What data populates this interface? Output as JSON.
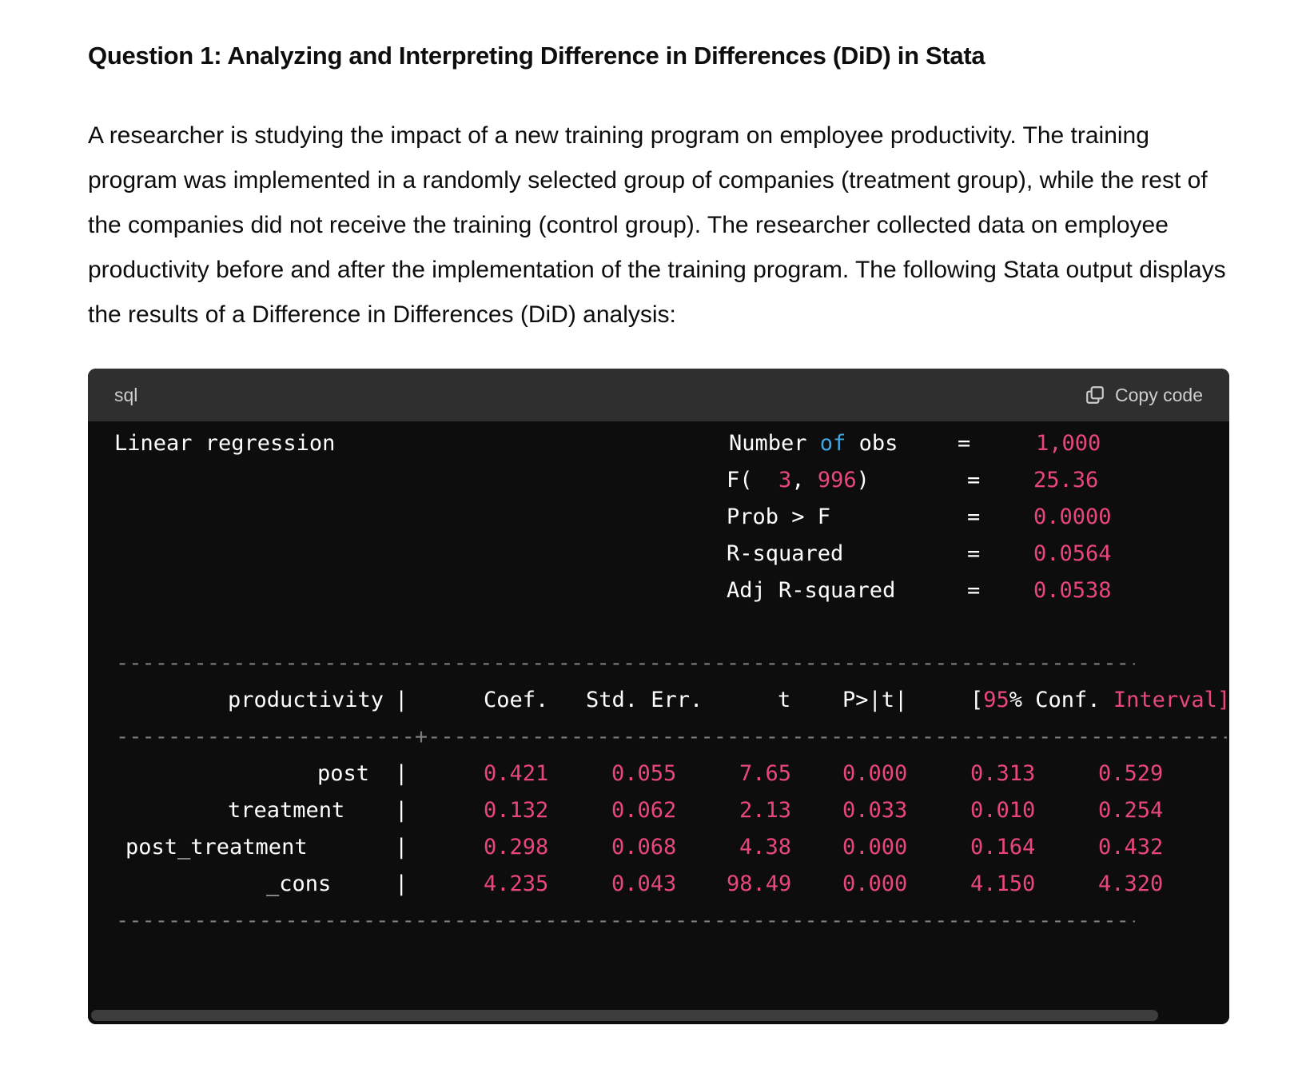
{
  "heading": "Question 1: Analyzing and Interpreting Difference in Differences (DiD) in Stata",
  "paragraph": "A researcher is studying the impact of a new training program on employee productivity. The training program was implemented in a randomly selected group of companies (treatment group), while the rest of the companies did not receive the training (control group). The researcher collected data on employee productivity before and after the implementation of the training program. The following Stata output displays the results of a Difference in Differences (DiD) analysis:",
  "code_block": {
    "language": "sql",
    "copy_label": "Copy code",
    "copy_icon": "copy-icon",
    "title": "Linear regression",
    "stats": [
      {
        "label_a": "Number ",
        "label_kw": "of",
        "label_b": " obs",
        "eq": "=",
        "value": "1,000"
      },
      {
        "label_prefix": "F(  ",
        "num1": "3",
        "sep": ", ",
        "num2": "996",
        "label_suffix": ")",
        "eq": "=",
        "value": "25.36"
      },
      {
        "label": "Prob > F",
        "eq": "=",
        "value": "0.0000"
      },
      {
        "label": "R-squared",
        "eq": "=",
        "value": "0.0564"
      },
      {
        "label": "Adj R-squared",
        "eq": "=",
        "value": "0.0538"
      }
    ],
    "separator_top": "----------------------------------------------------------------------------------------------",
    "separator_mid_left": "-----------------------",
    "separator_mid_plus": "+",
    "separator_mid_right": "---------------------------------------------------------------------------------------------------",
    "separator_bottom": "----------------------------------------------------------------------------------------------",
    "header": {
      "depvar": "productivity",
      "pipe": "|",
      "coef": "Coef.",
      "se": "Std. Err.",
      "t": "t",
      "p": "P>|t|",
      "ci_open": "[",
      "ci_num": "95",
      "ci_text": "% Conf. ",
      "ci_tail": "Interval]"
    },
    "rows": [
      {
        "name": "post",
        "pipe": "|",
        "coef": "0.421",
        "se": "0.055",
        "t": "7.65",
        "p": "0.000",
        "ci_low": "0.313",
        "ci_high": "0.529"
      },
      {
        "name": "treatment",
        "pipe": "|",
        "coef": "0.132",
        "se": "0.062",
        "t": "2.13",
        "p": "0.033",
        "ci_low": "0.010",
        "ci_high": "0.254"
      },
      {
        "name": "post_treatment",
        "pipe": "|",
        "coef": "0.298",
        "se": "0.068",
        "t": "4.38",
        "p": "0.000",
        "ci_low": "0.164",
        "ci_high": "0.432"
      },
      {
        "name": "_cons",
        "pipe": "|",
        "coef": "4.235",
        "se": "0.043",
        "t": "98.49",
        "p": "0.000",
        "ci_low": "4.150",
        "ci_high": "4.320"
      }
    ]
  },
  "colors": {
    "code_bg": "#0d0d0d",
    "header_bg": "#2f2f2f",
    "number": "#e9467f",
    "keyword": "#3fa6e0"
  }
}
